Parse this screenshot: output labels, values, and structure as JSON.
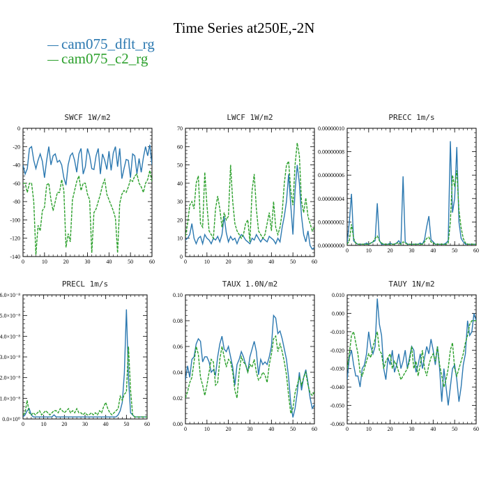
{
  "title": "Time Series at250E,-2N",
  "colors": {
    "dflt": "#2b78b0",
    "c2": "#2ca02c"
  },
  "legend": [
    {
      "label": "cam075_dflt_rg",
      "color": "#2b78b0"
    },
    {
      "label": "cam075_c2_rg",
      "color": "#2ca02c"
    }
  ],
  "chart_data": [
    {
      "type": "line",
      "title": "SWCF   1W/m2",
      "xlim": [
        0,
        60
      ],
      "ylim": [
        -140,
        0
      ],
      "xticks": [
        0,
        10,
        20,
        30,
        40,
        50,
        60
      ],
      "xtick_labels": [
        "0",
        "10",
        "20",
        "30",
        "40",
        "50",
        "60"
      ],
      "yticks": [
        0,
        -20,
        -40,
        -60,
        -80,
        -100,
        -120,
        -140
      ],
      "ytick_labels": [
        "0",
        "-20",
        "-40",
        "-60",
        "-80",
        "-100",
        "-120",
        "-140"
      ],
      "series": [
        {
          "name": "cam075_dflt_rg",
          "values": [
            -40,
            -50,
            -44,
            -22,
            -20,
            -35,
            -44,
            -35,
            -28,
            -36,
            -54,
            -35,
            -20,
            -40,
            -30,
            -28,
            -37,
            -35,
            -40,
            -54,
            -62,
            -40,
            -30,
            -27,
            -35,
            -48,
            -28,
            -22,
            -50,
            -42,
            -22,
            -30,
            -44,
            -45,
            -30,
            -22,
            -50,
            -28,
            -35,
            -45,
            -25,
            -46,
            -27,
            -20,
            -42,
            -22,
            -55,
            -44,
            -34,
            -35,
            -54,
            -28,
            -30,
            -50,
            -33,
            -48,
            -32,
            -20,
            -30,
            -18,
            -40
          ]
        },
        {
          "name": "cam075_c2_rg",
          "values": [
            -60,
            -60,
            -70,
            -60,
            -60,
            -80,
            -138,
            -106,
            -112,
            -90,
            -86,
            -62,
            -60,
            -78,
            -90,
            -80,
            -70,
            -70,
            -56,
            -68,
            -130,
            -115,
            -124,
            -78,
            -68,
            -58,
            -52,
            -68,
            -60,
            -60,
            -72,
            -78,
            -136,
            -92,
            -88,
            -80,
            -72,
            -62,
            -56,
            -72,
            -78,
            -84,
            -90,
            -98,
            -136,
            -82,
            -72,
            -68,
            -70,
            -64,
            -56,
            -58,
            -52,
            -50,
            -60,
            -64,
            -70,
            -60,
            -56,
            -46,
            -58
          ]
        }
      ]
    },
    {
      "type": "line",
      "title": "LWCF   1W/m2",
      "xlim": [
        0,
        60
      ],
      "ylim": [
        0,
        70
      ],
      "xticks": [
        0,
        10,
        20,
        30,
        40,
        50,
        60
      ],
      "xtick_labels": [
        "0",
        "10",
        "20",
        "30",
        "40",
        "50",
        "60"
      ],
      "yticks": [
        0,
        10,
        20,
        30,
        40,
        50,
        60,
        70
      ],
      "ytick_labels": [
        "0",
        "10",
        "20",
        "30",
        "40",
        "50",
        "60",
        "70"
      ],
      "series": [
        {
          "name": "cam075_dflt_rg",
          "values": [
            9,
            10,
            12,
            18,
            10,
            7,
            10,
            11,
            7,
            12,
            10,
            9,
            7,
            10,
            9,
            11,
            8,
            12,
            22,
            13,
            8,
            11,
            9,
            10,
            7,
            10,
            12,
            11,
            9,
            8,
            7,
            10,
            9,
            12,
            10,
            8,
            10,
            9,
            8,
            11,
            10,
            9,
            7,
            10,
            8,
            16,
            22,
            30,
            45,
            28,
            12,
            36,
            50,
            40,
            22,
            12,
            8,
            14,
            6,
            4,
            5
          ]
        },
        {
          "name": "cam075_c2_rg",
          "values": [
            11,
            18,
            28,
            30,
            26,
            40,
            44,
            18,
            16,
            46,
            28,
            14,
            12,
            10,
            26,
            33,
            26,
            16,
            24,
            20,
            22,
            50,
            30,
            18,
            14,
            12,
            10,
            12,
            18,
            20,
            8,
            36,
            45,
            26,
            14,
            12,
            10,
            12,
            18,
            24,
            14,
            30,
            16,
            12,
            16,
            24,
            40,
            50,
            52,
            36,
            28,
            50,
            62,
            55,
            30,
            24,
            32,
            22,
            18,
            14,
            16
          ]
        }
      ]
    },
    {
      "type": "line",
      "title": "PRECC   1m/s",
      "xlim": [
        0,
        60
      ],
      "ylim": [
        0,
        1e-07
      ],
      "xticks": [
        0,
        10,
        20,
        30,
        40,
        50,
        60
      ],
      "xtick_labels": [
        "0",
        "10",
        "20",
        "30",
        "40",
        "50",
        "60"
      ],
      "yticks": [
        0,
        2e-08,
        4e-08,
        6e-08,
        8e-08,
        1e-07
      ],
      "ytick_labels": [
        "0.00000000",
        "0.00000002",
        "0.00000004",
        "0.00000006",
        "0.00000008",
        "0.00000010"
      ],
      "series": [
        {
          "name": "cam075_dflt_rg",
          "values": [
            2e-09,
            2e-08,
            4.4e-08,
            4e-09,
            2e-09,
            1e-09,
            1e-09,
            1e-09,
            1e-09,
            2e-09,
            1e-09,
            2e-09,
            3e-09,
            4e-09,
            3.6e-08,
            4e-09,
            1e-09,
            1e-09,
            1e-09,
            1e-09,
            2e-09,
            1e-09,
            1e-09,
            2e-09,
            4e-09,
            1e-09,
            5.9e-08,
            3e-09,
            1e-09,
            1e-09,
            1e-09,
            1e-09,
            1e-09,
            1e-09,
            2e-09,
            1e-09,
            5e-09,
            1.6e-08,
            2.5e-08,
            5e-09,
            3e-09,
            1e-09,
            1e-09,
            1e-09,
            1e-09,
            1e-09,
            2e-09,
            4e-09,
            8.9e-08,
            2.8e-08,
            4e-08,
            8.4e-08,
            2e-08,
            6e-09,
            3e-09,
            1e-09,
            1e-09,
            1e-09,
            1e-09,
            1e-09,
            1e-09
          ]
        },
        {
          "name": "cam075_c2_rg",
          "values": [
            1e-09,
            4e-09,
            1.8e-08,
            6e-09,
            2e-09,
            1e-09,
            1e-09,
            1e-09,
            1e-09,
            1e-09,
            1e-09,
            2e-09,
            3e-09,
            6e-09,
            8e-09,
            4e-09,
            2e-09,
            1e-09,
            1e-09,
            1e-09,
            1e-09,
            1e-09,
            1e-09,
            2e-09,
            2e-09,
            1e-09,
            3e-09,
            2e-09,
            1e-09,
            1e-09,
            1e-09,
            1e-09,
            1e-09,
            1e-09,
            1e-09,
            1e-09,
            3e-09,
            6e-09,
            7e-09,
            3e-09,
            2e-09,
            1e-09,
            1e-09,
            1e-09,
            1e-09,
            1e-09,
            1e-09,
            2e-09,
            2e-08,
            6e-08,
            5e-08,
            6.4e-08,
            3e-08,
            1.5e-08,
            6e-09,
            2e-09,
            1e-09,
            1e-09,
            1e-09,
            1e-09,
            1e-09
          ]
        }
      ]
    },
    {
      "type": "line",
      "title": "PRECL   1m/s",
      "xlim": [
        0,
        60
      ],
      "ylim": [
        0,
        6e-08
      ],
      "xticks": [
        0,
        10,
        20,
        30,
        40,
        50,
        60
      ],
      "xtick_labels": [
        "0",
        "10",
        "20",
        "30",
        "40",
        "50",
        "60"
      ],
      "yticks": [
        0,
        1e-08,
        2e-08,
        3e-08,
        4e-08,
        5e-08,
        6e-08
      ],
      "ytick_labels": [
        "0.0×10⁰",
        "1.0×10⁻⁸",
        "2.0×10⁻⁸",
        "3.0×10⁻⁸",
        "4.0×10⁻⁸",
        "5.0×10⁻⁸",
        "6.0×10⁻⁸"
      ],
      "series": [
        {
          "name": "cam075_dflt_rg",
          "values": [
            1e-09,
            2e-09,
            4e-09,
            5e-09,
            2e-09,
            1e-09,
            1e-09,
            1e-09,
            1e-09,
            1e-09,
            1e-09,
            1e-09,
            1e-09,
            1e-09,
            1e-09,
            2e-09,
            1e-09,
            1e-09,
            1e-09,
            1e-09,
            1e-09,
            1e-09,
            1e-09,
            1e-09,
            1e-09,
            1e-09,
            1e-09,
            1e-09,
            1e-09,
            1e-09,
            1e-09,
            1e-09,
            1e-09,
            1e-09,
            1e-09,
            1e-09,
            1e-09,
            1e-09,
            1e-09,
            1e-09,
            1e-09,
            1e-09,
            1e-09,
            1e-09,
            1e-09,
            1e-09,
            2e-09,
            4e-09,
            8e-09,
            2.2e-08,
            5.3e-08,
            2e-08,
            3e-09,
            2e-09,
            1e-09,
            1e-09,
            1e-09,
            1e-09,
            1e-09,
            1e-09,
            1e-09
          ]
        },
        {
          "name": "cam075_c2_rg",
          "values": [
            2e-09,
            3e-09,
            9e-09,
            3e-09,
            2e-09,
            3e-09,
            2e-09,
            3e-09,
            4e-09,
            2e-09,
            3e-09,
            4e-09,
            3e-09,
            2e-09,
            3e-09,
            4e-09,
            4e-09,
            3e-09,
            5e-09,
            4e-09,
            3e-09,
            4e-09,
            5e-09,
            3e-09,
            4e-09,
            3e-09,
            5e-09,
            3e-09,
            3e-09,
            2e-09,
            3e-09,
            2e-09,
            2e-09,
            3e-09,
            2e-09,
            3e-09,
            2e-09,
            4e-09,
            3e-09,
            6e-09,
            8e-09,
            5e-09,
            3e-09,
            2e-09,
            3e-09,
            4e-09,
            5e-09,
            1.1e-08,
            9e-09,
            1.2e-08,
            1.3e-08,
            3.5e-08,
            1.4e-08,
            2e-09,
            1e-09,
            1e-09,
            1e-09,
            1e-09,
            1e-09,
            1e-09,
            1e-09
          ]
        }
      ]
    },
    {
      "type": "line",
      "title": "TAUX   1.0N/m2",
      "xlim": [
        0,
        60
      ],
      "ylim": [
        0,
        0.1
      ],
      "xticks": [
        0,
        10,
        20,
        30,
        40,
        50,
        60
      ],
      "xtick_labels": [
        "0",
        "10",
        "20",
        "30",
        "40",
        "50",
        "60"
      ],
      "yticks": [
        0,
        0.02,
        0.04,
        0.06,
        0.08,
        0.1
      ],
      "ytick_labels": [
        "0.00",
        "0.02",
        "0.04",
        "0.06",
        "0.08",
        "0.10"
      ],
      "series": [
        {
          "name": "cam075_dflt_rg",
          "values": [
            0.034,
            0.045,
            0.036,
            0.05,
            0.052,
            0.062,
            0.066,
            0.064,
            0.048,
            0.052,
            0.052,
            0.048,
            0.04,
            0.042,
            0.038,
            0.052,
            0.062,
            0.068,
            0.058,
            0.056,
            0.06,
            0.052,
            0.044,
            0.03,
            0.046,
            0.05,
            0.056,
            0.052,
            0.046,
            0.04,
            0.052,
            0.058,
            0.064,
            0.056,
            0.038,
            0.05,
            0.046,
            0.048,
            0.046,
            0.052,
            0.06,
            0.084,
            0.082,
            0.07,
            0.072,
            0.066,
            0.058,
            0.05,
            0.036,
            0.016,
            0.005,
            0.012,
            0.024,
            0.04,
            0.026,
            0.036,
            0.042,
            0.032,
            0.02,
            0.012,
            0.015
          ]
        },
        {
          "name": "cam075_c2_rg",
          "values": [
            0.02,
            0.025,
            0.032,
            0.036,
            0.048,
            0.06,
            0.054,
            0.036,
            0.03,
            0.022,
            0.03,
            0.04,
            0.05,
            0.048,
            0.03,
            0.032,
            0.05,
            0.06,
            0.052,
            0.044,
            0.05,
            0.048,
            0.04,
            0.026,
            0.02,
            0.04,
            0.052,
            0.048,
            0.046,
            0.04,
            0.046,
            0.044,
            0.05,
            0.04,
            0.034,
            0.036,
            0.04,
            0.038,
            0.032,
            0.046,
            0.054,
            0.066,
            0.068,
            0.056,
            0.062,
            0.056,
            0.048,
            0.038,
            0.022,
            0.008,
            0.012,
            0.024,
            0.03,
            0.036,
            0.03,
            0.036,
            0.04,
            0.03,
            0.024,
            0.022,
            0.025
          ]
        }
      ]
    },
    {
      "type": "line",
      "title": "TAUY   1N/m2",
      "xlim": [
        0,
        60
      ],
      "ylim": [
        -0.06,
        0.01
      ],
      "xticks": [
        0,
        10,
        20,
        30,
        40,
        50,
        60
      ],
      "xtick_labels": [
        "0",
        "10",
        "20",
        "30",
        "40",
        "50",
        "60"
      ],
      "yticks": [
        0.01,
        0.0,
        -0.01,
        -0.02,
        -0.03,
        -0.04,
        -0.05,
        -0.06
      ],
      "ytick_labels": [
        "0.010",
        "0.000",
        "-0.010",
        "-0.020",
        "-0.030",
        "-0.040",
        "-0.050",
        "-0.060"
      ],
      "series": [
        {
          "name": "cam075_dflt_rg",
          "values": [
            -0.036,
            -0.024,
            -0.02,
            -0.028,
            -0.034,
            -0.034,
            -0.04,
            -0.03,
            -0.028,
            -0.022,
            -0.01,
            -0.018,
            -0.022,
            -0.018,
            0.008,
            -0.006,
            -0.012,
            -0.03,
            -0.036,
            -0.024,
            -0.028,
            -0.02,
            -0.032,
            -0.028,
            -0.022,
            -0.03,
            -0.026,
            -0.02,
            -0.03,
            -0.024,
            -0.018,
            -0.02,
            -0.032,
            -0.028,
            -0.022,
            -0.03,
            -0.024,
            -0.018,
            -0.022,
            -0.014,
            -0.02,
            -0.028,
            -0.018,
            -0.03,
            -0.048,
            -0.03,
            -0.04,
            -0.05,
            -0.04,
            -0.03,
            -0.028,
            -0.036,
            -0.048,
            -0.04,
            -0.028,
            -0.022,
            -0.004,
            -0.012,
            -0.01,
            0.0,
            -0.004
          ]
        },
        {
          "name": "cam075_c2_rg",
          "values": [
            -0.03,
            -0.022,
            -0.012,
            -0.01,
            -0.016,
            -0.022,
            -0.032,
            -0.034,
            -0.03,
            -0.026,
            -0.022,
            -0.024,
            -0.018,
            -0.014,
            -0.01,
            -0.02,
            -0.022,
            -0.03,
            -0.026,
            -0.024,
            -0.022,
            -0.03,
            -0.026,
            -0.028,
            -0.032,
            -0.036,
            -0.034,
            -0.032,
            -0.03,
            -0.026,
            -0.018,
            -0.03,
            -0.026,
            -0.034,
            -0.028,
            -0.02,
            -0.03,
            -0.034,
            -0.028,
            -0.024,
            -0.022,
            -0.026,
            -0.018,
            -0.028,
            -0.034,
            -0.04,
            -0.036,
            -0.03,
            -0.02,
            -0.016,
            -0.03,
            -0.034,
            -0.03,
            -0.026,
            -0.022,
            -0.016,
            -0.012,
            -0.006,
            -0.004,
            -0.004,
            -0.004
          ]
        }
      ]
    }
  ]
}
